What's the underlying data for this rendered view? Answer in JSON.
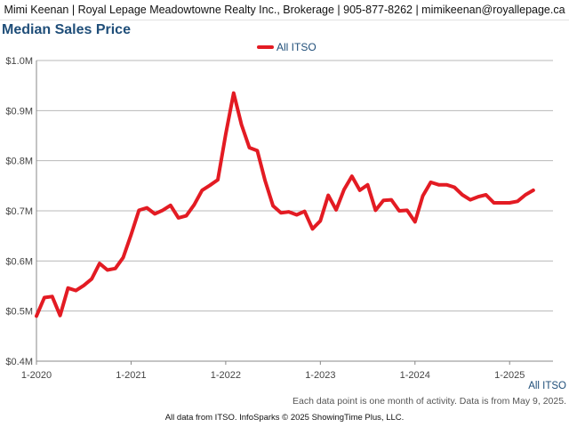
{
  "header": {
    "contact_line": "Mimi Keenan | Royal Lepage Meadowtowne Realty Inc., Brokerage | 905-877-8262 | mimikeenan@royallepage.ca"
  },
  "colors": {
    "series": "#e31b23",
    "title": "#1f4e79",
    "grid": "#b8b8b8"
  },
  "chart_data": {
    "type": "line",
    "title": "Median Sales Price",
    "xlabel": "",
    "ylabel": "",
    "legend_position": "top-center",
    "grid": true,
    "ylim": [
      400000,
      1000000
    ],
    "y_ticks": [
      400000,
      500000,
      600000,
      700000,
      800000,
      900000,
      1000000
    ],
    "y_tick_labels": [
      "$0.4M",
      "$0.5M",
      "$0.6M",
      "$0.7M",
      "$0.8M",
      "$0.9M",
      "$1.0M"
    ],
    "x_tick_labels": [
      "1-2020",
      "1-2021",
      "1-2022",
      "1-2023",
      "1-2024",
      "1-2025"
    ],
    "x_tick_dates": [
      "2020-01",
      "2021-01",
      "2022-01",
      "2023-01",
      "2024-01",
      "2025-01"
    ],
    "x_range": [
      "2020-01",
      "2025-04"
    ],
    "x": [
      "2020-01",
      "2020-02",
      "2020-03",
      "2020-04",
      "2020-05",
      "2020-06",
      "2020-07",
      "2020-08",
      "2020-09",
      "2020-10",
      "2020-11",
      "2020-12",
      "2021-01",
      "2021-02",
      "2021-03",
      "2021-04",
      "2021-05",
      "2021-06",
      "2021-07",
      "2021-08",
      "2021-09",
      "2021-10",
      "2021-11",
      "2021-12",
      "2022-01",
      "2022-02",
      "2022-03",
      "2022-04",
      "2022-05",
      "2022-06",
      "2022-07",
      "2022-08",
      "2022-09",
      "2022-10",
      "2022-11",
      "2022-12",
      "2023-01",
      "2023-02",
      "2023-03",
      "2023-04",
      "2023-05",
      "2023-06",
      "2023-07",
      "2023-08",
      "2023-09",
      "2023-10",
      "2023-11",
      "2023-12",
      "2024-01",
      "2024-02",
      "2024-03",
      "2024-04",
      "2024-05",
      "2024-06",
      "2024-07",
      "2024-08",
      "2024-09",
      "2024-10",
      "2024-11",
      "2024-12",
      "2025-01",
      "2025-02",
      "2025-03",
      "2025-04"
    ],
    "series": [
      {
        "name": "All ITSO",
        "values": [
          490000,
          527000,
          529000,
          491000,
          546000,
          541000,
          551000,
          564000,
          595000,
          582000,
          585000,
          607000,
          652000,
          701000,
          706000,
          694000,
          701000,
          711000,
          686000,
          690000,
          712000,
          741000,
          751000,
          762000,
          853000,
          935000,
          872000,
          826000,
          820000,
          760000,
          710000,
          696000,
          698000,
          692000,
          699000,
          664000,
          680000,
          731000,
          702000,
          742000,
          769000,
          741000,
          752000,
          701000,
          721000,
          722000,
          700000,
          701000,
          678000,
          730000,
          757000,
          752000,
          752000,
          747000,
          732000,
          722000,
          728000,
          732000,
          716000,
          716000,
          716000,
          719000,
          732000,
          741000
        ]
      }
    ]
  },
  "footer": {
    "series_label": "All ITSO",
    "note": "Each data point is one month of activity. Data is from May 9, 2025.",
    "credit": "All data from ITSO. InfoSparks © 2025 ShowingTime Plus, LLC."
  }
}
